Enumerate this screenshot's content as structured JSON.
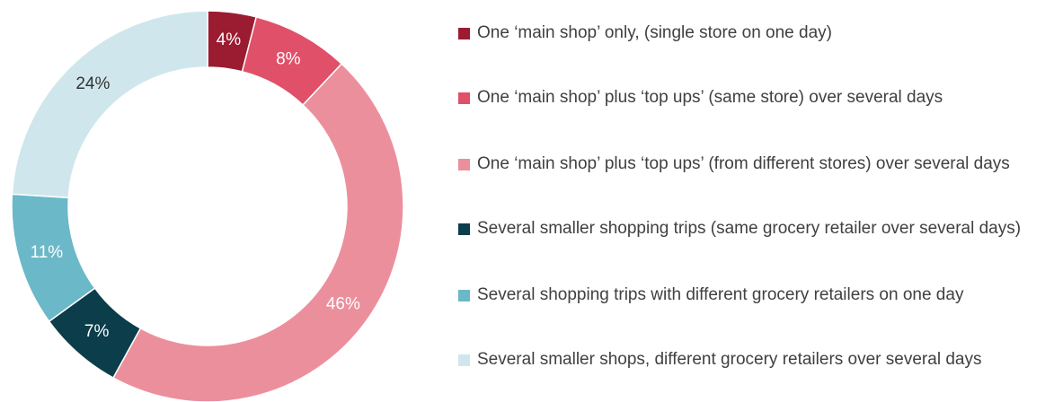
{
  "chart_data": {
    "type": "donut",
    "categories": [
      "One ‘main shop’ only, (single store on one day)",
      "One ‘main shop’ plus ‘top ups’ (same store) over several days",
      "One ‘main shop’ plus ‘top ups’ (from different stores) over several days",
      "Several smaller shopping trips (same grocery retailer over several days)",
      "Several shopping trips with different grocery retailers on one day",
      "Several smaller shops, different grocery retailers over several days"
    ],
    "values": [
      4,
      8,
      46,
      7,
      11,
      24
    ],
    "value_labels": [
      "4%",
      "8%",
      "46%",
      "7%",
      "11%",
      "24%"
    ],
    "colors": [
      "#9b1b30",
      "#e05068",
      "#ec8f9c",
      "#0b3d4a",
      "#6bb8c8",
      "#cfe7ec"
    ],
    "legend": "right"
  }
}
